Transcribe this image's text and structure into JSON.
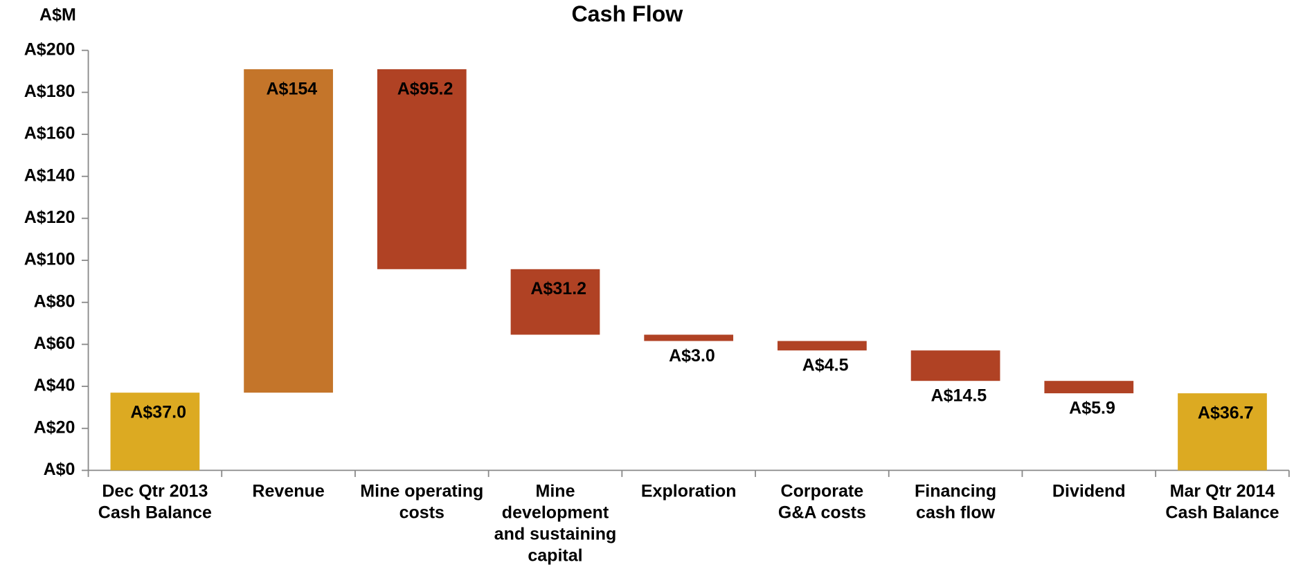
{
  "chart_data": {
    "type": "waterfall",
    "title": "Cash Flow",
    "y_label": "A$M",
    "categories": [
      "Dec Qtr 2013\nCash Balance",
      "Revenue",
      "Mine operating\ncosts",
      "Mine\ndevelopment\nand sustaining\ncapital",
      "Exploration",
      "Corporate\nG&A costs",
      "Financing\ncash flow",
      "Dividend",
      "Mar Qtr 2014\nCash Balance"
    ],
    "values": [
      37.0,
      154,
      -95.2,
      -31.2,
      -3.0,
      -4.5,
      -14.5,
      -5.9,
      36.7
    ],
    "value_labels": [
      "A$37.0",
      "A$154",
      "A$95.2",
      "A$31.2",
      "A$3.0",
      "A$4.5",
      "A$14.5",
      "A$5.9",
      "A$36.7"
    ],
    "measure": [
      "absolute",
      "relative",
      "relative",
      "relative",
      "relative",
      "relative",
      "relative",
      "relative",
      "absolute"
    ],
    "colors": {
      "absolute": "#dcaa22",
      "increase": "#c4752a",
      "decrease": "#b04224"
    },
    "ylim": [
      0,
      200
    ],
    "yticks": [
      {
        "value": 0,
        "label": "A$0"
      },
      {
        "value": 20,
        "label": "A$20"
      },
      {
        "value": 40,
        "label": "A$40"
      },
      {
        "value": 60,
        "label": "A$60"
      },
      {
        "value": 80,
        "label": "A$80"
      },
      {
        "value": 100,
        "label": "A$100"
      },
      {
        "value": 120,
        "label": "A$120"
      },
      {
        "value": 140,
        "label": "A$140"
      },
      {
        "value": 160,
        "label": "A$160"
      },
      {
        "value": 180,
        "label": "A$180"
      },
      {
        "value": 200,
        "label": "A$200"
      }
    ],
    "grid": false
  }
}
